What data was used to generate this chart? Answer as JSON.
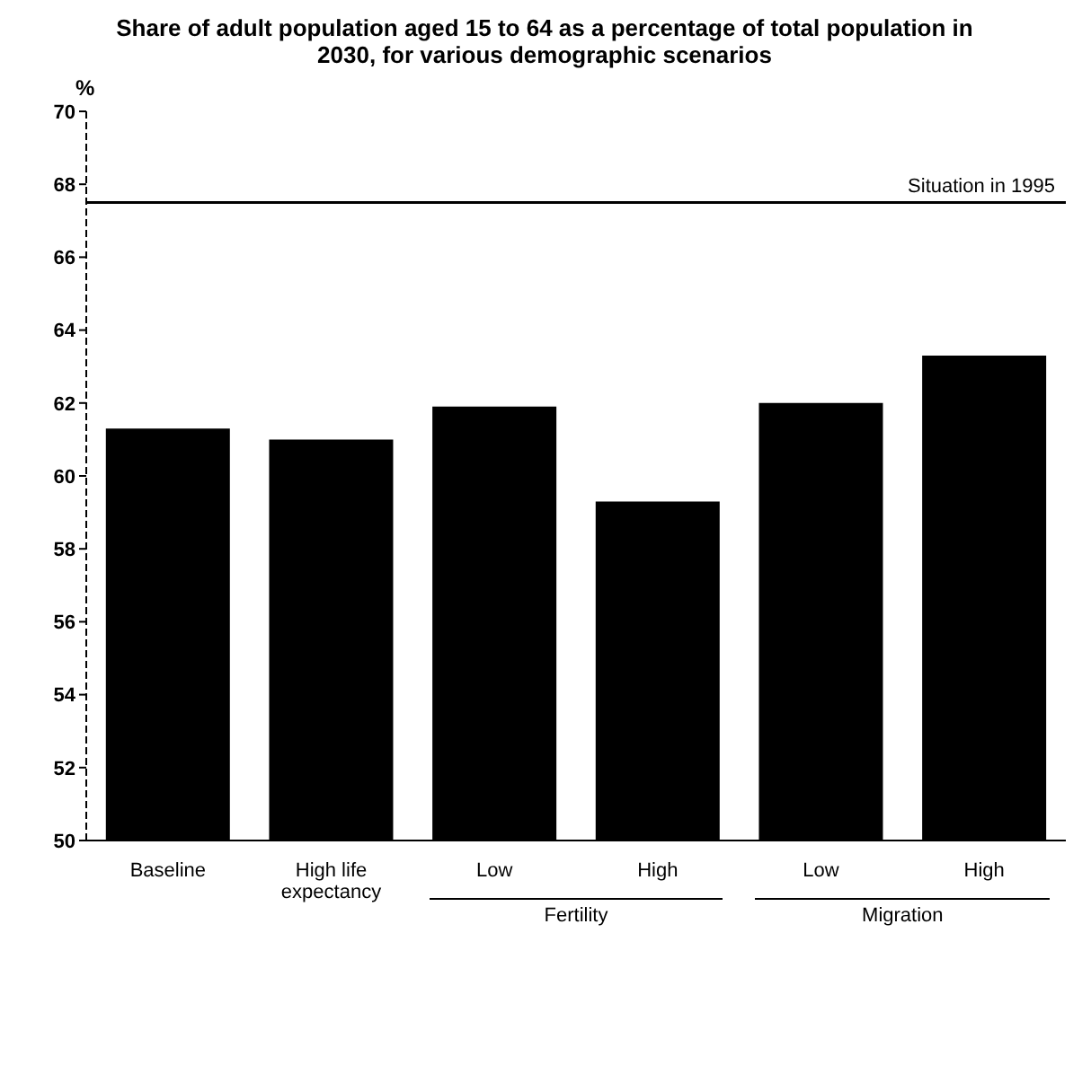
{
  "chart_data": {
    "type": "bar",
    "title": "Share of adult population aged 15 to 64 as a percentage of total population in 2030, for various demographic scenarios",
    "ylabel": "%",
    "categories": [
      "Baseline",
      "High life expectancy",
      "Low",
      "High",
      "Low",
      "High"
    ],
    "values": [
      61.3,
      61.0,
      61.9,
      59.3,
      62.0,
      63.3
    ],
    "color": "#000000",
    "ylim": [
      50,
      70
    ],
    "yticks": [
      50,
      52,
      54,
      56,
      58,
      60,
      62,
      64,
      66,
      68,
      70
    ],
    "ref_lines": [
      {
        "axis": "y",
        "value": 67.5,
        "label": "Situation in 1995",
        "color": "#000000"
      }
    ],
    "annotations": [
      "Fertility",
      "Migration"
    ]
  }
}
